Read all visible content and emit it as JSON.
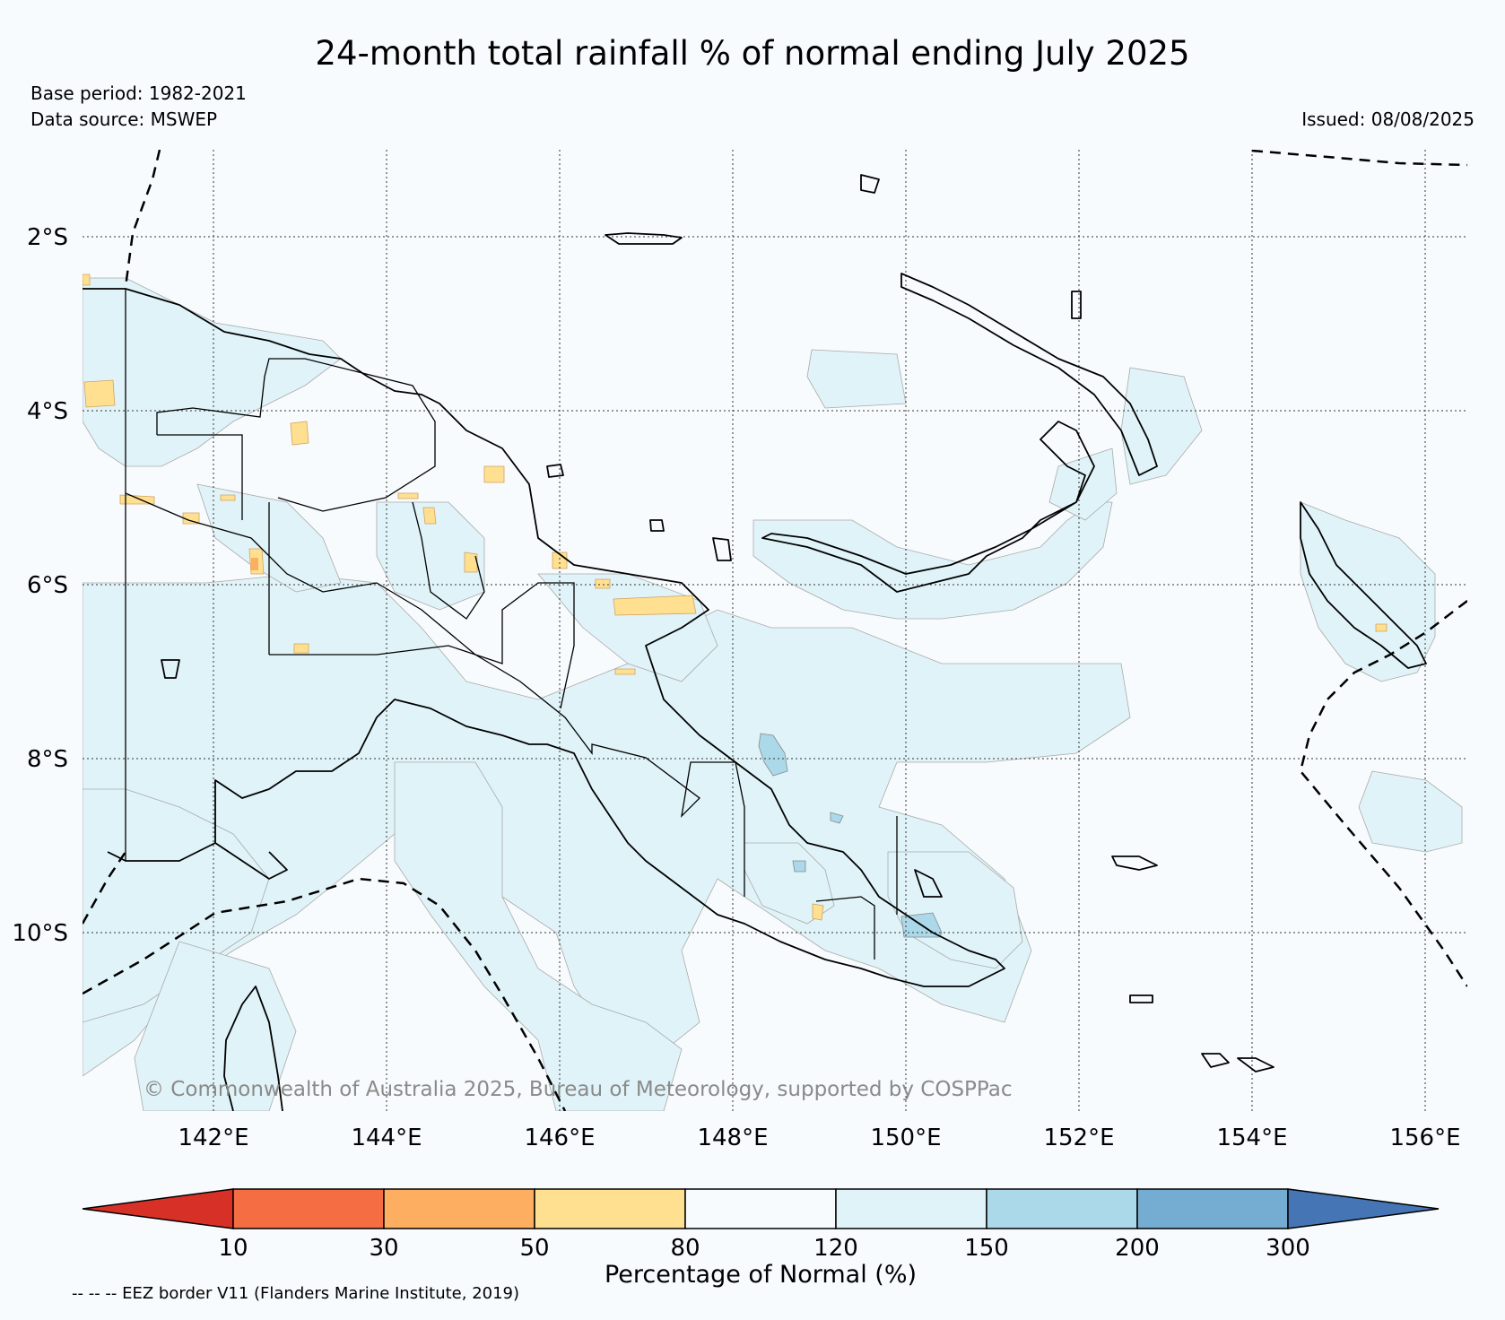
{
  "title": "24-month total rainfall % of normal ending July 2025",
  "base_period": "Base period: 1982-2021",
  "data_source": "Data source: MSWEP",
  "issued": "Issued: 08/08/2025",
  "credit": "© Commonwealth of Australia 2025, Bureau of Meteorology, supported by COSPPac",
  "footnote": "-- -- -- EEZ border V11 (Flanders Marine Institute, 2019)",
  "map": {
    "lat_ticks": [
      "2°S",
      "4°S",
      "6°S",
      "8°S",
      "10°S"
    ],
    "lon_ticks": [
      "142°E",
      "144°E",
      "146°E",
      "148°E",
      "150°E",
      "152°E",
      "154°E",
      "156°E"
    ]
  },
  "colorbar": {
    "title": "Percentage of Normal (%)",
    "boundaries": [
      "10",
      "30",
      "50",
      "80",
      "120",
      "150",
      "200",
      "300"
    ],
    "colors": [
      "#d73027",
      "#f46d43",
      "#fdae61",
      "#fee090",
      "#f7fbfd",
      "#e0f3f8",
      "#abd9e9",
      "#74add1",
      "#4575b4"
    ]
  }
}
